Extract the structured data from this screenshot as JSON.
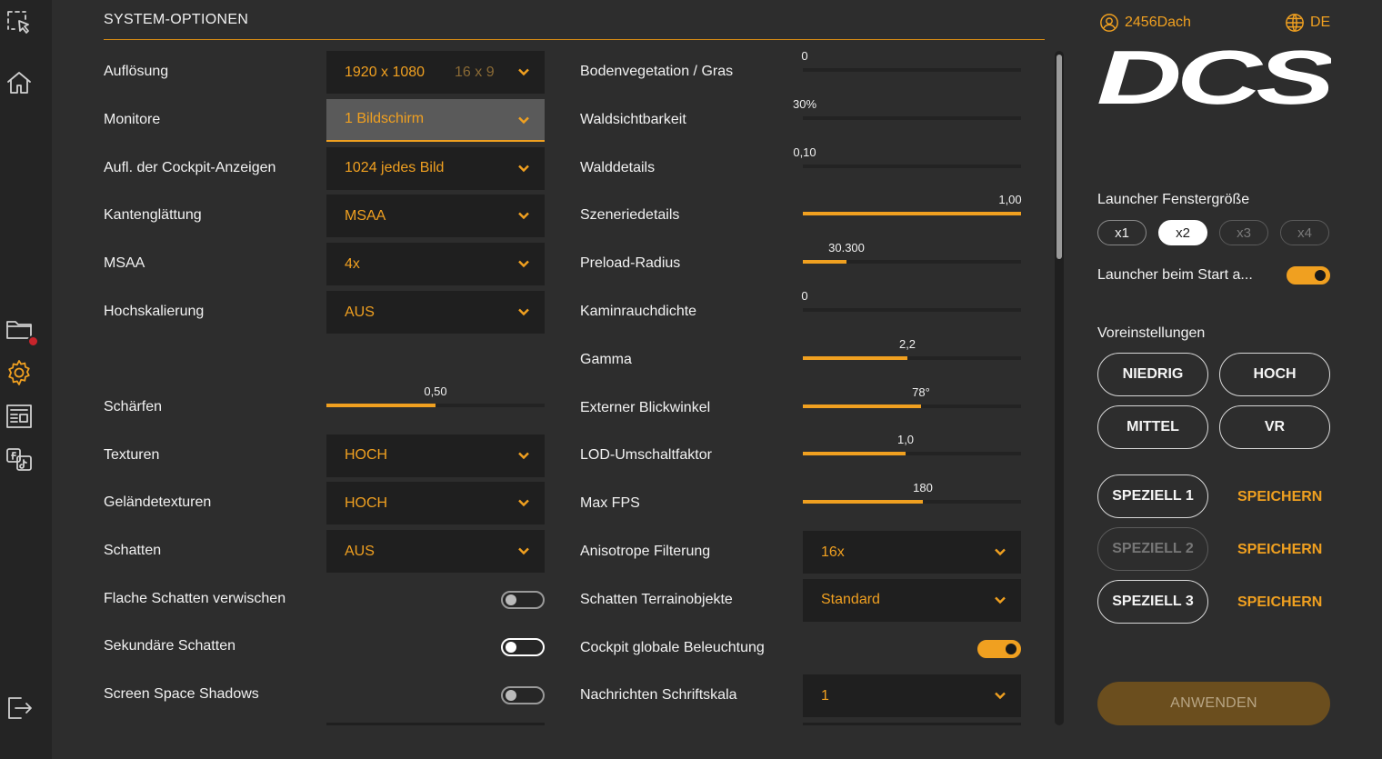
{
  "sidebar": [
    {
      "name": "select-tool-icon"
    },
    {
      "name": "home-icon"
    },
    {
      "name": "folder-icon"
    },
    {
      "name": "gear-icon"
    },
    {
      "name": "news-icon"
    },
    {
      "name": "social-icon"
    },
    {
      "name": "logout-icon"
    }
  ],
  "section_title": "SYSTEM-OPTIONEN",
  "left": [
    {
      "label": "Auflösung",
      "type": "dropdown",
      "value": "1920 x 1080",
      "aux": "16 x 9"
    },
    {
      "label": "Monitore",
      "type": "dropdown",
      "value": "1 Bildschirm",
      "highlight": true
    },
    {
      "label": "Aufl. der Cockpit-Anzeigen",
      "type": "dropdown",
      "value": "1024 jedes Bild"
    },
    {
      "label": "Kantenglättung",
      "type": "dropdown",
      "value": "MSAA"
    },
    {
      "label": "MSAA",
      "type": "dropdown",
      "value": "4x"
    },
    {
      "label": "Hochskalierung",
      "type": "dropdown",
      "value": "AUS"
    },
    {
      "label": "Schärfen",
      "type": "slider",
      "value": "0,50",
      "fraction": 0.5
    },
    {
      "label": "Texturen",
      "type": "dropdown",
      "value": "HOCH"
    },
    {
      "label": "Geländetexturen",
      "type": "dropdown",
      "value": "HOCH"
    },
    {
      "label": "Schatten",
      "type": "dropdown",
      "value": "AUS"
    },
    {
      "label": "Flache Schatten verwischen",
      "type": "toggle",
      "state": "off-disabled"
    },
    {
      "label": "Sekundäre Schatten",
      "type": "toggle",
      "state": "off"
    },
    {
      "label": "Screen Space Shadows",
      "type": "toggle",
      "state": "off-disabled"
    }
  ],
  "right": [
    {
      "label": "Bodenvegetation / Gras",
      "type": "slider",
      "value": "0",
      "fraction": 0
    },
    {
      "label": "Waldsichtbarkeit",
      "type": "slider",
      "value": "30%",
      "fraction": 0
    },
    {
      "label": "Walddetails",
      "type": "slider",
      "value": "0,10",
      "fraction": 0
    },
    {
      "label": "Szeneriedetails",
      "type": "slider",
      "value": "1,00",
      "fraction": 1
    },
    {
      "label": "Preload-Radius",
      "type": "slider",
      "value": "30.300",
      "fraction": 0.2
    },
    {
      "label": "Kaminrauchdichte",
      "type": "slider",
      "value": "0",
      "fraction": 0
    },
    {
      "label": "Gamma",
      "type": "slider",
      "value": "2,2",
      "fraction": 0.48
    },
    {
      "label": "Externer Blickwinkel",
      "type": "slider",
      "value": "78°",
      "fraction": 0.54
    },
    {
      "label": "LOD-Umschaltfaktor",
      "type": "slider",
      "value": "1,0",
      "fraction": 0.47
    },
    {
      "label": "Max FPS",
      "type": "slider",
      "value": "180",
      "fraction": 0.55
    },
    {
      "label": "Anisotrope Filterung",
      "type": "dropdown",
      "value": "16x"
    },
    {
      "label": "Schatten Terrainobjekte",
      "type": "dropdown",
      "value": "Standard"
    },
    {
      "label": "Cockpit globale Beleuchtung",
      "type": "toggle",
      "state": "on"
    },
    {
      "label": "Nachrichten Schriftskala",
      "type": "dropdown",
      "value": "1"
    }
  ],
  "user": {
    "name": "2456Dach",
    "lang": "DE"
  },
  "logo_text": "DCS",
  "window_size": {
    "label": "Launcher Fenstergröße",
    "options": [
      "x1",
      "x2",
      "x3",
      "x4"
    ],
    "selected": "x2",
    "dim": [
      "x3",
      "x4"
    ]
  },
  "launcher_start": {
    "label": "Launcher beim Start a...",
    "on": true
  },
  "presets": {
    "label": "Voreinstellungen",
    "items": [
      "NIEDRIG",
      "HOCH",
      "MITTEL",
      "VR"
    ]
  },
  "specials": [
    {
      "label": "SPEZIELL 1",
      "save": "SPEICHERN",
      "dim": false
    },
    {
      "label": "SPEZIELL 2",
      "save": "SPEICHERN",
      "dim": true
    },
    {
      "label": "SPEZIELL 3",
      "save": "SPEICHERN",
      "dim": false
    }
  ],
  "apply": "ANWENDEN",
  "colors": {
    "accent": "#f0a020",
    "bg": "#2d2d2d",
    "control": "#1f1f1f"
  }
}
